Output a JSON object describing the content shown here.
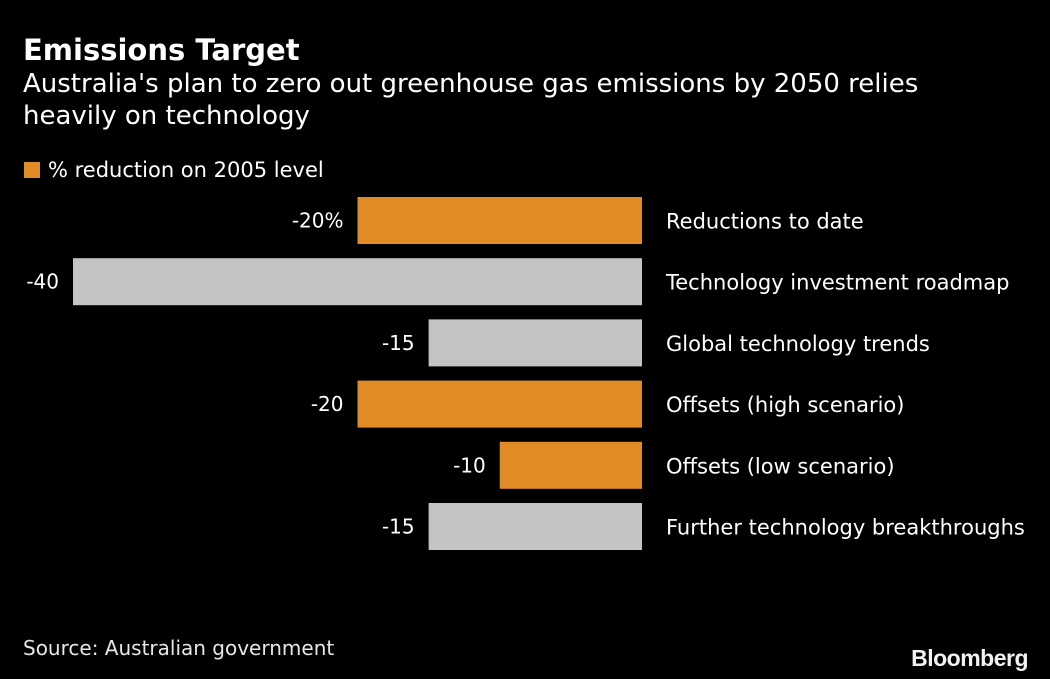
{
  "header": {
    "title": "Emissions Target",
    "subtitle": "Australia's plan to zero out greenhouse gas emissions by 2050 relies heavily on technology"
  },
  "legend": {
    "label": "% reduction on 2005 level",
    "color": "#e08b25"
  },
  "footer": {
    "source": "Source: Australian government",
    "brand": "Bloomberg"
  },
  "colors": {
    "highlight": "#e08b25",
    "neutral": "#c4c4c4",
    "background": "#000000",
    "text": "#ffffff"
  },
  "chart_data": {
    "type": "bar",
    "orientation": "horizontal",
    "title": "Emissions Target",
    "subtitle": "Australia's plan to zero out greenhouse gas emissions by 2050 relies heavily on technology",
    "xlabel": "% reduction on 2005 level",
    "ylabel": "",
    "xlim": [
      -40,
      0
    ],
    "grid": false,
    "legend_position": "top-left",
    "categories": [
      "Reductions to date",
      "Technology investment roadmap",
      "Global technology trends",
      "Offsets (high scenario)",
      "Offsets (low scenario)",
      "Further technology breakthroughs"
    ],
    "values": [
      -20,
      -40,
      -15,
      -20,
      -10,
      -15
    ],
    "value_labels": [
      "-20%",
      "-40",
      "-15",
      "-20",
      "-10",
      "-15"
    ],
    "highlighted": [
      true,
      false,
      false,
      true,
      true,
      false
    ]
  }
}
